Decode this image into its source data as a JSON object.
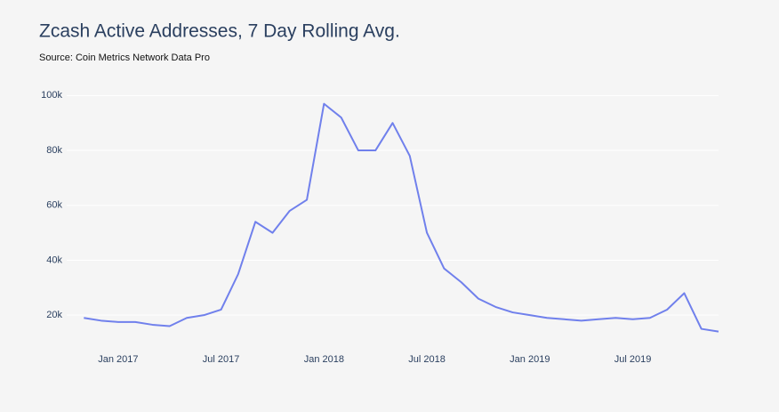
{
  "chart_data": {
    "type": "line",
    "title": "Zcash Active Addresses, 7 Day Rolling Avg.",
    "subtitle": "Source: Coin Metrics Network Data Pro",
    "x": [
      "2016-11",
      "2016-12",
      "2017-01",
      "2017-02",
      "2017-03",
      "2017-04",
      "2017-05",
      "2017-06",
      "2017-07",
      "2017-08",
      "2017-09",
      "2017-10",
      "2017-11",
      "2017-12",
      "2018-01",
      "2018-02",
      "2018-03",
      "2018-04",
      "2018-05",
      "2018-06",
      "2018-07",
      "2018-08",
      "2018-09",
      "2018-10",
      "2018-11",
      "2018-12",
      "2019-01",
      "2019-02",
      "2019-03",
      "2019-04",
      "2019-05",
      "2019-06",
      "2019-07",
      "2019-08",
      "2019-09",
      "2019-10",
      "2019-11",
      "2019-12"
    ],
    "series": [
      {
        "name": "Active Addresses",
        "color": "#7080ec",
        "values": [
          19000,
          18000,
          17500,
          17500,
          16500,
          16000,
          19000,
          20000,
          22000,
          35000,
          54000,
          50000,
          58000,
          62000,
          97000,
          92000,
          80000,
          80000,
          90000,
          78000,
          50000,
          37000,
          32000,
          26000,
          23000,
          21000,
          20000,
          19000,
          18500,
          18000,
          18500,
          19000,
          18500,
          19000,
          22000,
          28000,
          15000,
          14000
        ]
      }
    ],
    "xlim": [
      "2016-10",
      "2019-12"
    ],
    "xticks": [
      {
        "value": "2017-01",
        "label": "Jan 2017"
      },
      {
        "value": "2017-07",
        "label": "Jul 2017"
      },
      {
        "value": "2018-01",
        "label": "Jan 2018"
      },
      {
        "value": "2018-07",
        "label": "Jul 2018"
      },
      {
        "value": "2019-01",
        "label": "Jan 2019"
      },
      {
        "value": "2019-07",
        "label": "Jul 2019"
      }
    ],
    "ylim": [
      10000,
      104000
    ],
    "yticks": [
      {
        "value": 20000,
        "label": "20k"
      },
      {
        "value": 40000,
        "label": "40k"
      },
      {
        "value": 60000,
        "label": "60k"
      },
      {
        "value": 80000,
        "label": "80k"
      },
      {
        "value": 100000,
        "label": "100k"
      }
    ],
    "grid": true
  }
}
